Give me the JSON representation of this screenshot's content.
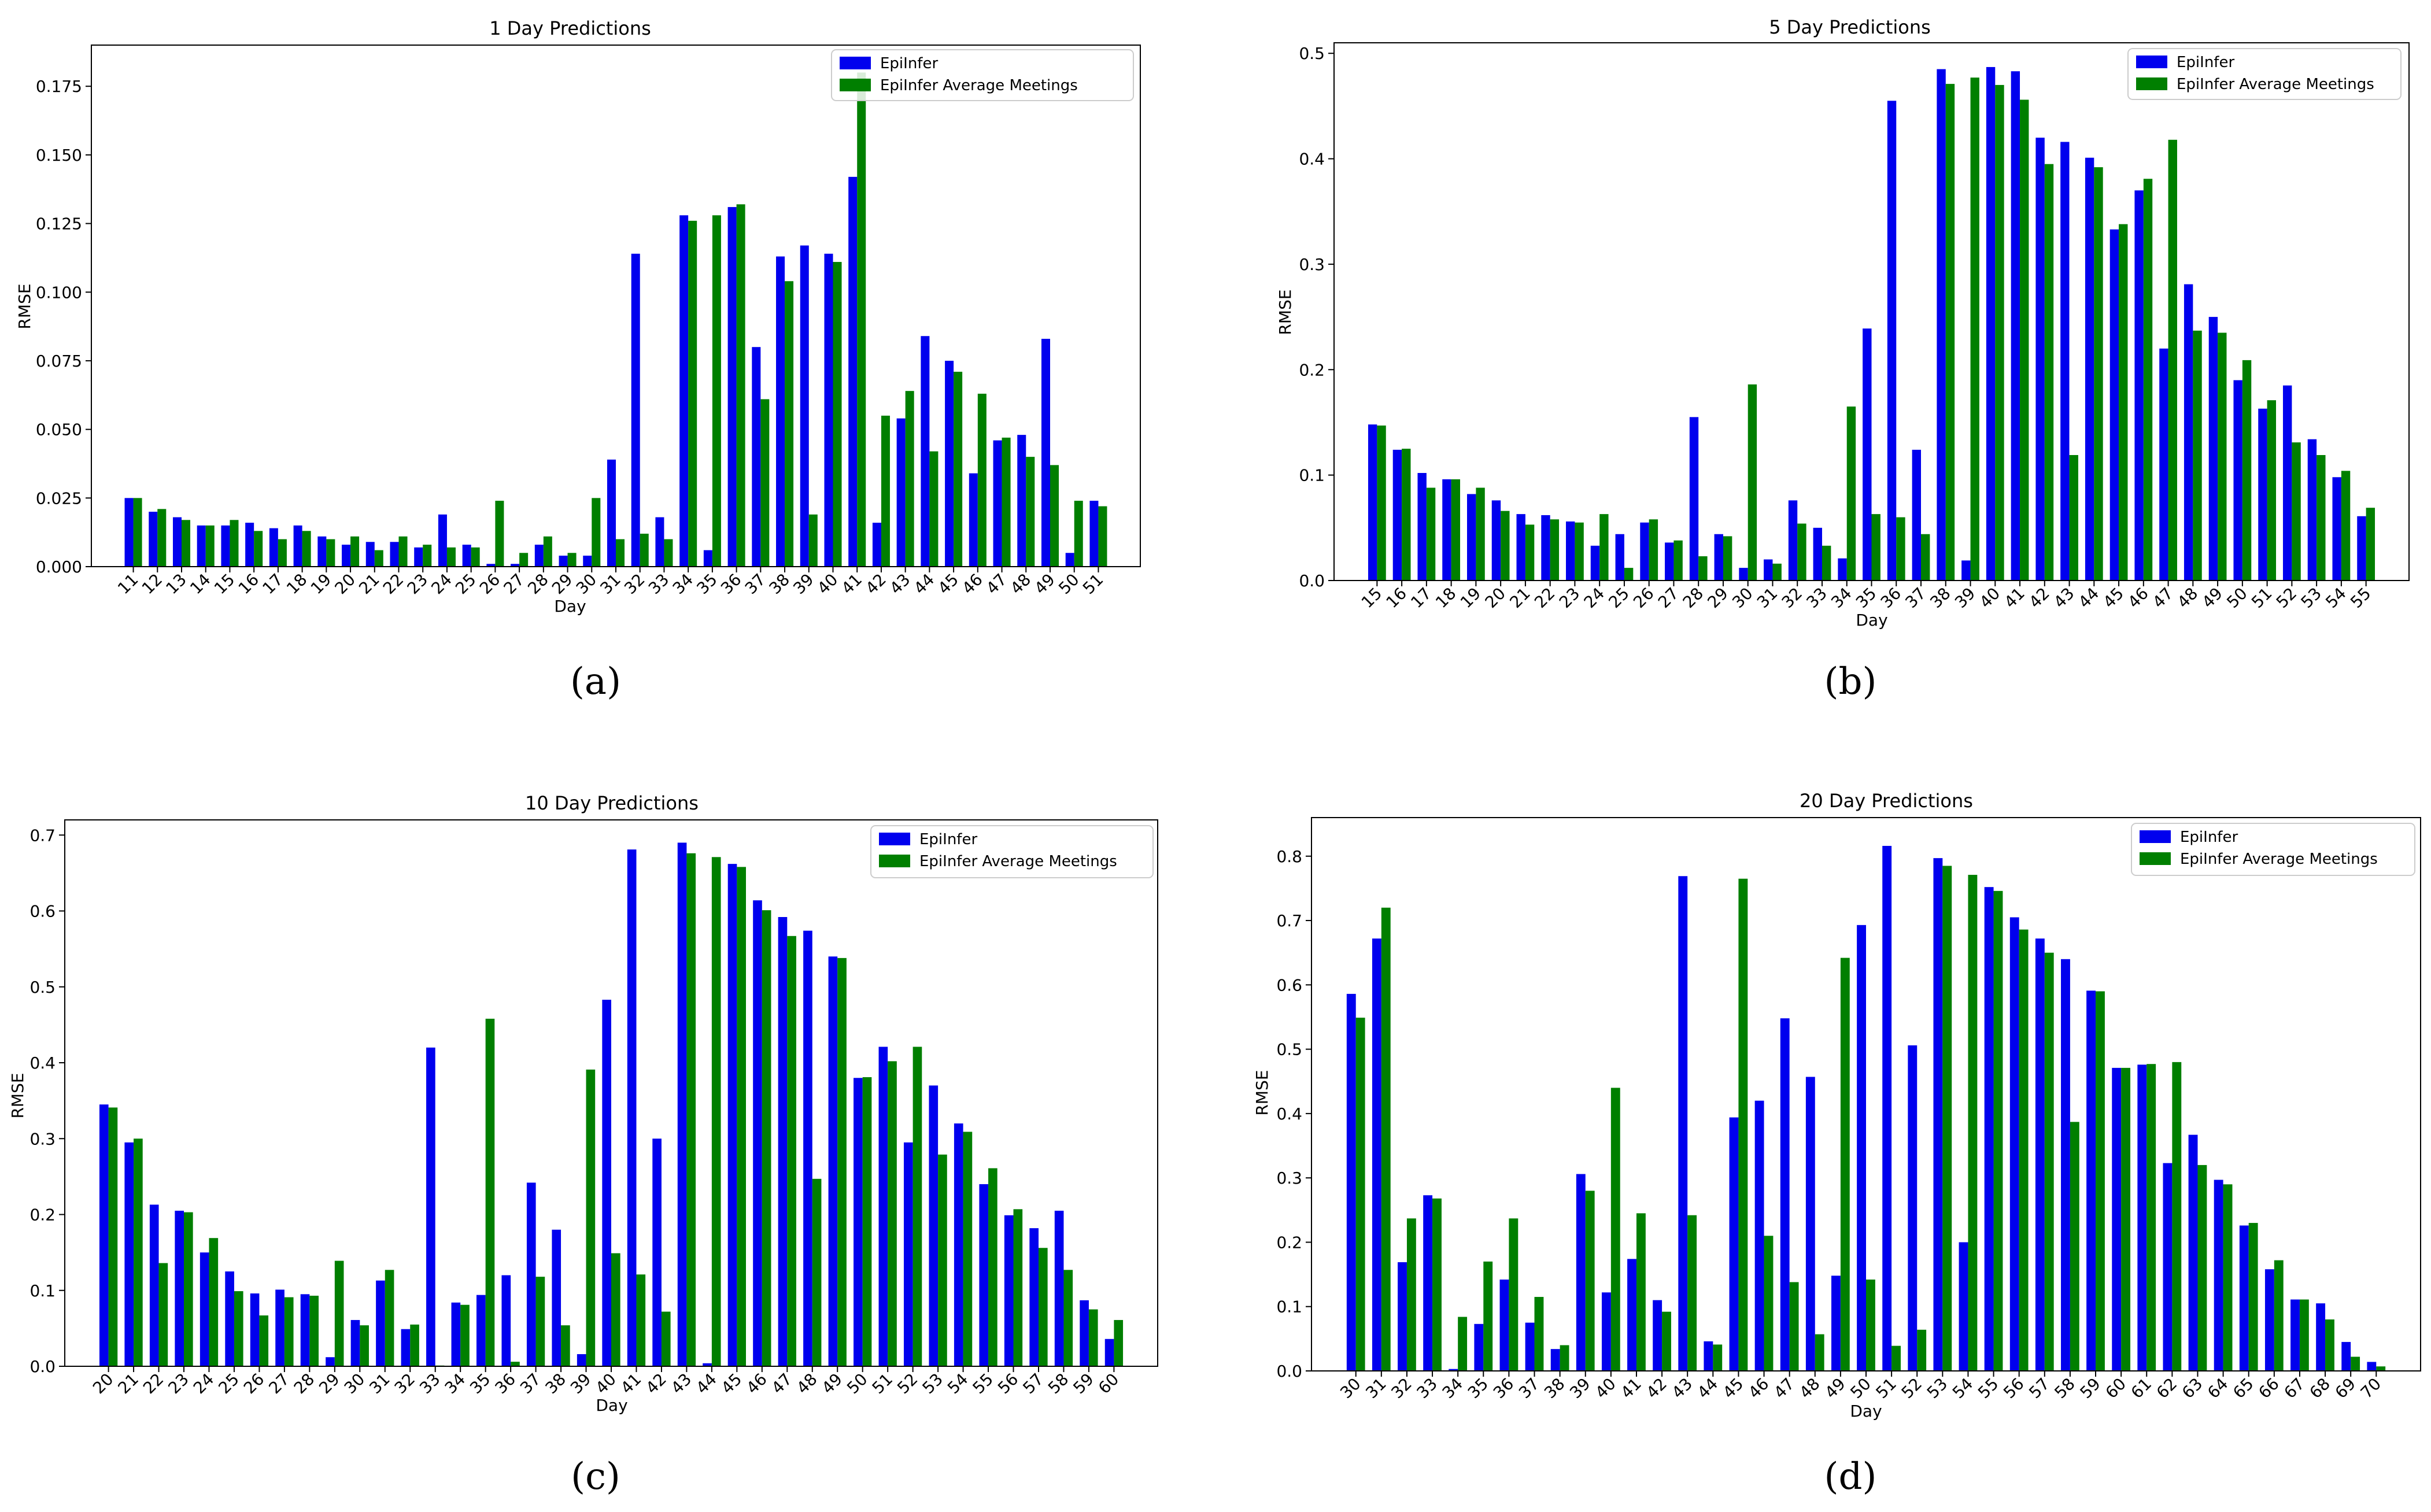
{
  "colors": {
    "series1": "#0000ee",
    "series2": "#007f00",
    "axis": "#000000"
  },
  "captions": [
    "(a)",
    "(b)",
    "(c)",
    "(d)"
  ],
  "chart_data": [
    {
      "type": "bar",
      "title": "1 Day Predictions",
      "xlabel": "Day",
      "ylabel": "RMSE",
      "ylim": [
        0,
        0.19
      ],
      "yticks": [
        "0.000",
        "0.025",
        "0.050",
        "0.075",
        "0.100",
        "0.125",
        "0.150",
        "0.175"
      ],
      "ytick_values": [
        0,
        0.025,
        0.05,
        0.075,
        0.1,
        0.125,
        0.15,
        0.175
      ],
      "legend_position": "top-right",
      "categories": [
        "11",
        "12",
        "13",
        "14",
        "15",
        "16",
        "17",
        "18",
        "19",
        "20",
        "21",
        "22",
        "23",
        "24",
        "25",
        "26",
        "27",
        "28",
        "29",
        "30",
        "31",
        "32",
        "33",
        "34",
        "35",
        "36",
        "37",
        "38",
        "39",
        "40",
        "41",
        "42",
        "43",
        "44",
        "45",
        "46",
        "47",
        "48",
        "49",
        "50",
        "51"
      ],
      "series": [
        {
          "name": "EpiInfer",
          "values": [
            0.025,
            0.02,
            0.018,
            0.015,
            0.015,
            0.016,
            0.014,
            0.015,
            0.011,
            0.008,
            0.009,
            0.009,
            0.007,
            0.019,
            0.008,
            0.001,
            0.001,
            0.008,
            0.004,
            0.004,
            0.039,
            0.114,
            0.018,
            0.128,
            0.006,
            0.131,
            0.08,
            0.113,
            0.117,
            0.114,
            0.142,
            0.016,
            0.054,
            0.084,
            0.075,
            0.034,
            0.046,
            0.048,
            0.083,
            0.005,
            0.024
          ]
        },
        {
          "name": "EpiInfer Average Meetings",
          "values": [
            0.025,
            0.021,
            0.017,
            0.015,
            0.017,
            0.013,
            0.01,
            0.013,
            0.01,
            0.011,
            0.006,
            0.011,
            0.008,
            0.007,
            0.007,
            0.024,
            0.005,
            0.011,
            0.005,
            0.025,
            0.01,
            0.012,
            0.01,
            0.126,
            0.128,
            0.132,
            0.061,
            0.104,
            0.019,
            0.111,
            0.18,
            0.055,
            0.064,
            0.042,
            0.071,
            0.063,
            0.047,
            0.04,
            0.037,
            0.024,
            0.022
          ]
        }
      ]
    },
    {
      "type": "bar",
      "title": "5 Day Predictions",
      "xlabel": "Day",
      "ylabel": "RMSE",
      "ylim": [
        0,
        0.51
      ],
      "yticks": [
        "0.0",
        "0.1",
        "0.2",
        "0.3",
        "0.4",
        "0.5"
      ],
      "ytick_values": [
        0,
        0.1,
        0.2,
        0.3,
        0.4,
        0.5
      ],
      "legend_position": "top-right",
      "categories": [
        "15",
        "16",
        "17",
        "18",
        "19",
        "20",
        "21",
        "22",
        "23",
        "24",
        "25",
        "26",
        "27",
        "28",
        "29",
        "30",
        "31",
        "32",
        "33",
        "34",
        "35",
        "36",
        "37",
        "38",
        "39",
        "40",
        "41",
        "42",
        "43",
        "44",
        "45",
        "46",
        "47",
        "48",
        "49",
        "50",
        "51",
        "52",
        "53",
        "54",
        "55"
      ],
      "series": [
        {
          "name": "EpiInfer",
          "values": [
            0.148,
            0.124,
            0.102,
            0.096,
            0.082,
            0.076,
            0.063,
            0.062,
            0.056,
            0.033,
            0.044,
            0.055,
            0.036,
            0.155,
            0.044,
            0.012,
            0.02,
            0.076,
            0.05,
            0.021,
            0.239,
            0.455,
            0.124,
            0.485,
            0.019,
            0.487,
            0.483,
            0.42,
            0.416,
            0.401,
            0.333,
            0.37,
            0.22,
            0.281,
            0.25,
            0.19,
            0.163,
            0.185,
            0.134,
            0.098,
            0.061
          ]
        },
        {
          "name": "EpiInfer Average Meetings",
          "values": [
            0.147,
            0.125,
            0.088,
            0.096,
            0.088,
            0.066,
            0.053,
            0.058,
            0.055,
            0.063,
            0.012,
            0.058,
            0.038,
            0.023,
            0.042,
            0.186,
            0.016,
            0.054,
            0.033,
            0.165,
            0.063,
            0.06,
            0.044,
            0.471,
            0.477,
            0.47,
            0.456,
            0.395,
            0.119,
            0.392,
            0.338,
            0.381,
            0.418,
            0.237,
            0.235,
            0.209,
            0.171,
            0.131,
            0.119,
            0.104,
            0.069
          ]
        }
      ]
    },
    {
      "type": "bar",
      "title": "10 Day Predictions",
      "xlabel": "Day",
      "ylabel": "RMSE",
      "ylim": [
        0,
        0.72
      ],
      "yticks": [
        "0.0",
        "0.1",
        "0.2",
        "0.3",
        "0.4",
        "0.5",
        "0.6",
        "0.7"
      ],
      "ytick_values": [
        0,
        0.1,
        0.2,
        0.3,
        0.4,
        0.5,
        0.6,
        0.7
      ],
      "legend_position": "top-right",
      "categories": [
        "20",
        "21",
        "22",
        "23",
        "24",
        "25",
        "26",
        "27",
        "28",
        "29",
        "30",
        "31",
        "32",
        "33",
        "34",
        "35",
        "36",
        "37",
        "38",
        "39",
        "40",
        "41",
        "42",
        "43",
        "44",
        "45",
        "46",
        "47",
        "48",
        "49",
        "50",
        "51",
        "52",
        "53",
        "54",
        "55",
        "56",
        "57",
        "58",
        "59",
        "60"
      ],
      "series": [
        {
          "name": "EpiInfer",
          "values": [
            0.345,
            0.295,
            0.213,
            0.205,
            0.15,
            0.125,
            0.096,
            0.101,
            0.095,
            0.012,
            0.061,
            0.113,
            0.049,
            0.42,
            0.084,
            0.094,
            0.12,
            0.242,
            0.18,
            0.016,
            0.483,
            0.681,
            0.3,
            0.69,
            0.004,
            0.662,
            0.614,
            0.592,
            0.574,
            0.54,
            0.38,
            0.421,
            0.295,
            0.37,
            0.32,
            0.24,
            0.199,
            0.182,
            0.205,
            0.087,
            0.036
          ]
        },
        {
          "name": "EpiInfer Average Meetings",
          "values": [
            0.341,
            0.3,
            0.136,
            0.203,
            0.169,
            0.099,
            0.067,
            0.091,
            0.093,
            0.139,
            0.054,
            0.127,
            0.055,
            0.001,
            0.081,
            0.458,
            0.006,
            0.118,
            0.054,
            0.391,
            0.149,
            0.121,
            0.072,
            0.676,
            0.671,
            0.658,
            0.601,
            0.567,
            0.247,
            0.538,
            0.381,
            0.402,
            0.421,
            0.279,
            0.309,
            0.261,
            0.207,
            0.156,
            0.127,
            0.075,
            0.061
          ]
        }
      ]
    },
    {
      "type": "bar",
      "title": "20 Day Predictions",
      "xlabel": "Day",
      "ylabel": "RMSE",
      "ylim": [
        0,
        0.86
      ],
      "yticks": [
        "0.0",
        "0.1",
        "0.2",
        "0.3",
        "0.4",
        "0.5",
        "0.6",
        "0.7",
        "0.8"
      ],
      "ytick_values": [
        0,
        0.1,
        0.2,
        0.3,
        0.4,
        0.5,
        0.6,
        0.7,
        0.8
      ],
      "legend_position": "top-right",
      "categories": [
        "30",
        "31",
        "32",
        "33",
        "34",
        "35",
        "36",
        "37",
        "38",
        "39",
        "40",
        "41",
        "42",
        "43",
        "44",
        "45",
        "46",
        "47",
        "48",
        "49",
        "50",
        "51",
        "52",
        "53",
        "54",
        "55",
        "56",
        "57",
        "58",
        "59",
        "60",
        "61",
        "62",
        "63",
        "64",
        "65",
        "66",
        "67",
        "68",
        "69",
        "70"
      ],
      "series": [
        {
          "name": "EpiInfer",
          "values": [
            0.586,
            0.672,
            0.169,
            0.273,
            0.003,
            0.073,
            0.142,
            0.075,
            0.034,
            0.306,
            0.122,
            0.174,
            0.11,
            0.769,
            0.046,
            0.394,
            0.42,
            0.548,
            0.457,
            0.148,
            0.693,
            0.816,
            0.506,
            0.797,
            0.2,
            0.752,
            0.705,
            0.672,
            0.64,
            0.591,
            0.471,
            0.476,
            0.323,
            0.367,
            0.297,
            0.226,
            0.158,
            0.111,
            0.105,
            0.045,
            0.014
          ]
        },
        {
          "name": "EpiInfer Average Meetings",
          "values": [
            0.549,
            0.72,
            0.237,
            0.268,
            0.084,
            0.17,
            0.237,
            0.115,
            0.04,
            0.28,
            0.44,
            0.245,
            0.092,
            0.242,
            0.041,
            0.765,
            0.21,
            0.138,
            0.057,
            0.642,
            0.142,
            0.039,
            0.064,
            0.785,
            0.771,
            0.746,
            0.686,
            0.65,
            0.387,
            0.59,
            0.471,
            0.477,
            0.48,
            0.32,
            0.29,
            0.23,
            0.172,
            0.111,
            0.08,
            0.022,
            0.007
          ]
        }
      ]
    }
  ]
}
